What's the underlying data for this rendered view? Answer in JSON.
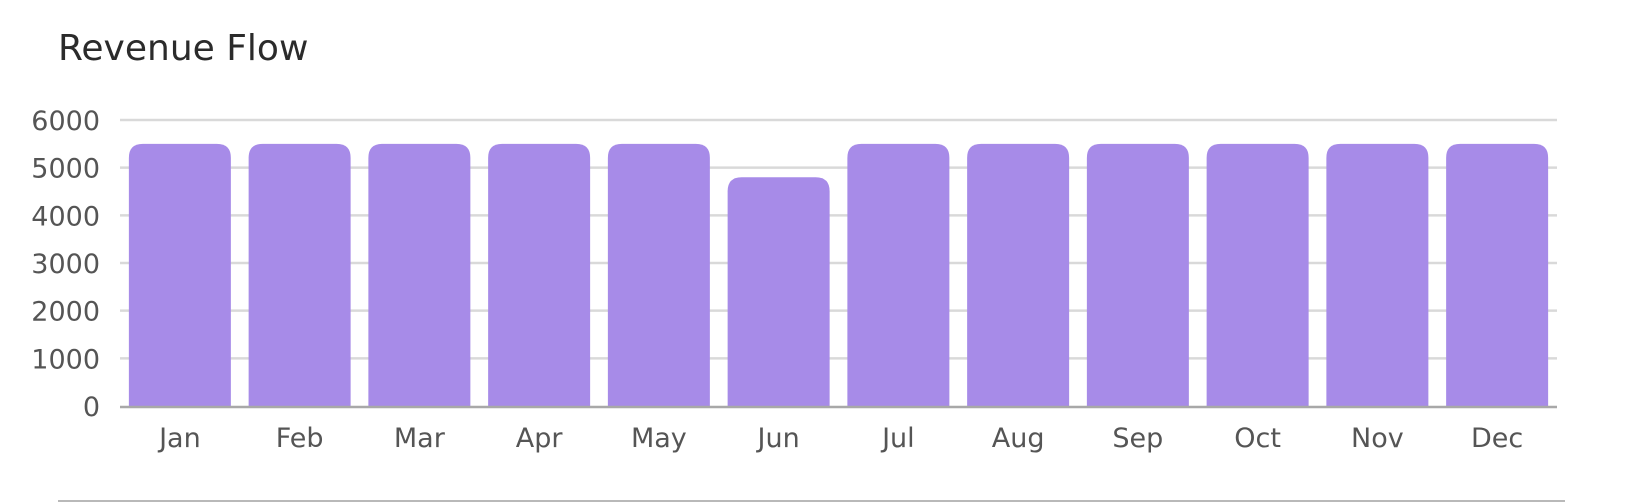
{
  "title": "Revenue Flow",
  "colors": {
    "bar": "#a78be8",
    "grid": "#d9d9d9",
    "axis": "#a8a8a8",
    "tick_text": "#555555",
    "title_text": "#2b2b2b"
  },
  "chart_data": {
    "type": "bar",
    "title": "Revenue Flow",
    "xlabel": "",
    "ylabel": "",
    "categories": [
      "Jan",
      "Feb",
      "Mar",
      "Apr",
      "May",
      "Jun",
      "Jul",
      "Aug",
      "Sep",
      "Oct",
      "Nov",
      "Dec"
    ],
    "series": [
      {
        "values": [
          5500,
          5500,
          5500,
          5500,
          5500,
          4800,
          5500,
          5500,
          5500,
          5500,
          5500,
          5500
        ]
      }
    ],
    "ylim": [
      0,
      6000
    ],
    "yticks": [
      0,
      1000,
      2000,
      3000,
      4000,
      5000,
      6000
    ],
    "grid": true,
    "legend": "none"
  }
}
